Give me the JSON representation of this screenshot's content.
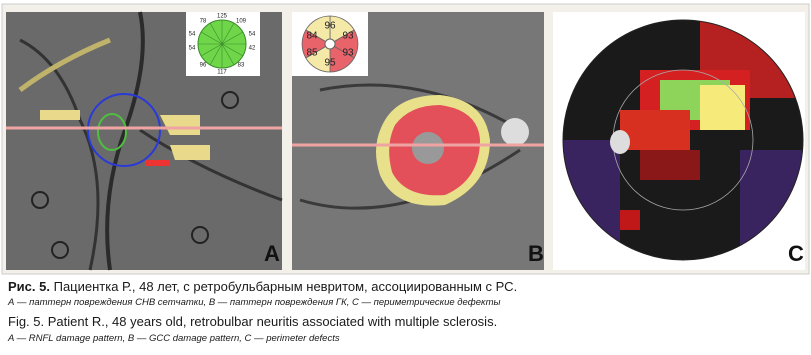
{
  "panels": [
    {
      "label": "A",
      "sectors": [
        78,
        125,
        109,
        54,
        54,
        54,
        42,
        96,
        117,
        83
      ]
    },
    {
      "label": "B",
      "sectors": [
        96,
        93,
        93,
        95,
        85,
        84
      ]
    },
    {
      "label": "C"
    }
  ],
  "caption": {
    "ru_label": "Рис. 5.",
    "ru_text": "Пациентка Р., 48 лет, с ретробульбарным невритом, ассоциированным с РС.",
    "ru_legend": "А — паттерн повреждения СНВ сетчатки, В — паттерн повреждения ГК, С — периметрические дефекты",
    "en_label": "Fig. 5.",
    "en_text": "Patient R., 48 years old, retrobulbar neuritis associated with multiple sclerosis.",
    "en_legend": "A — RNFL damage pattern, B — GCC damage pattern, C — perimeter defects"
  }
}
